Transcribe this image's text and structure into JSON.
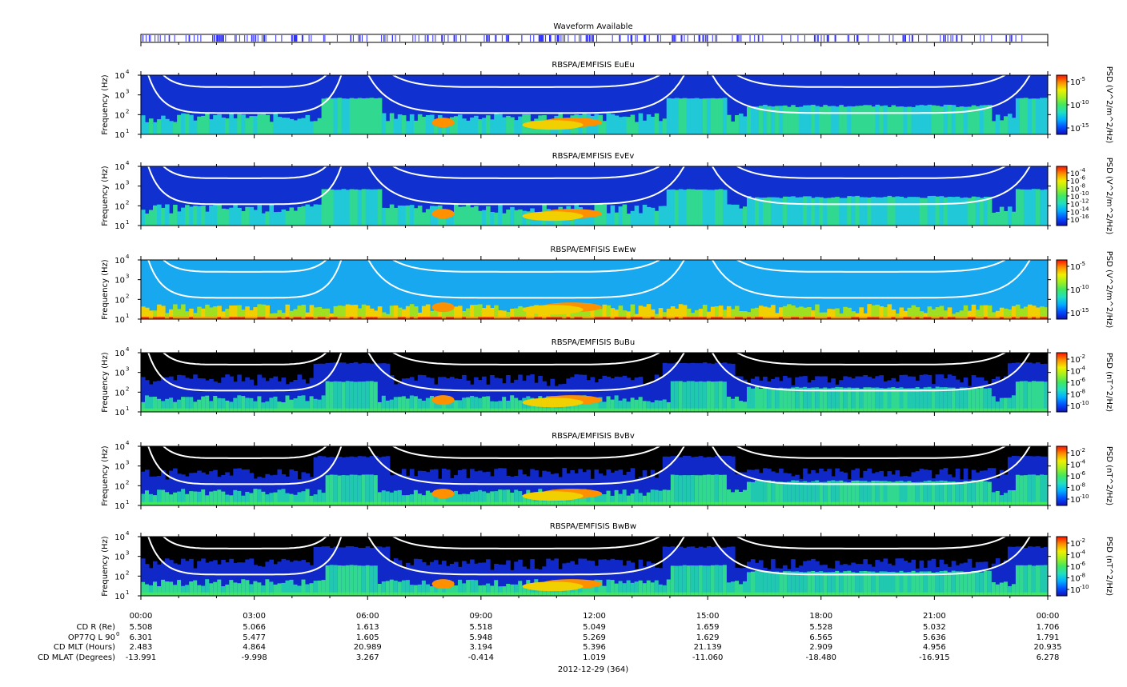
{
  "waveform": {
    "title": "Waveform Available"
  },
  "colors": {
    "colormap": [
      "#1010c0",
      "#0050ff",
      "#00b0ff",
      "#20e0c0",
      "#40e860",
      "#a0f020",
      "#f0f000",
      "#ff9000",
      "#ff1000"
    ],
    "background_black": "#000000",
    "waveform_marks": "#3030ff",
    "overlay_lines": "#ffffff"
  },
  "time_axis": {
    "date_label": "2012-12-29 (364)",
    "tick_labels": [
      "00:00",
      "03:00",
      "06:00",
      "09:00",
      "12:00",
      "15:00",
      "18:00",
      "21:00",
      "00:00"
    ],
    "ephemeris": [
      {
        "label": "CD R (Re)",
        "values": [
          "5.508",
          "5.066",
          "1.613",
          "5.518",
          "5.049",
          "1.659",
          "5.528",
          "5.032",
          "1.706"
        ]
      },
      {
        "label": "OP77Q L 90",
        "sup": "0",
        "values": [
          "6.301",
          "5.477",
          "1.605",
          "5.948",
          "5.269",
          "1.629",
          "6.565",
          "5.636",
          "1.791"
        ]
      },
      {
        "label": "CD MLT (Hours)",
        "values": [
          "2.483",
          "4.864",
          "20.989",
          "3.194",
          "5.396",
          "21.139",
          "2.909",
          "4.956",
          "20.935"
        ]
      },
      {
        "label": "CD MLAT (Degrees)",
        "values": [
          "-13.991",
          "-9.998",
          "3.267",
          "-0.414",
          "1.019",
          "-11.060",
          "-18.480",
          "-16.915",
          "6.278"
        ]
      }
    ]
  },
  "chart_data": [
    {
      "type": "heatmap",
      "title": "RBSPA/EMFISIS  EuEu",
      "ylabel": "Frequency (Hz)",
      "yscale": "log",
      "ylim": [
        10,
        10000
      ],
      "yticks": [
        "10",
        "10",
        "10",
        "10"
      ],
      "ytick_exp": [
        "1",
        "2",
        "3",
        "4"
      ],
      "colorbar_label": "PSD (V^2/m^2/Hz)",
      "colorbar_ticks": [
        "10",
        "10",
        "10"
      ],
      "colorbar_exp": [
        "-5",
        "-10",
        "-15"
      ],
      "background": "blue"
    },
    {
      "type": "heatmap",
      "title": "RBSPA/EMFISIS  EvEv",
      "ylabel": "Frequency (Hz)",
      "yscale": "log",
      "ylim": [
        10,
        10000
      ],
      "yticks": [
        "10",
        "10",
        "10",
        "10"
      ],
      "ytick_exp": [
        "1",
        "2",
        "3",
        "4"
      ],
      "colorbar_label": "PSD (V^2/m^2/Hz)",
      "colorbar_ticks": [
        "10",
        "10",
        "10",
        "10",
        "10",
        "10",
        "10"
      ],
      "colorbar_exp": [
        "-4",
        "-6",
        "-8",
        "-10",
        "-12",
        "-14",
        "-16"
      ],
      "background": "blue"
    },
    {
      "type": "heatmap",
      "title": "RBSPA/EMFISIS  EwEw",
      "ylabel": "Frequency (Hz)",
      "yscale": "log",
      "ylim": [
        10,
        10000
      ],
      "yticks": [
        "10",
        "10",
        "10",
        "10"
      ],
      "ytick_exp": [
        "1",
        "2",
        "3",
        "4"
      ],
      "colorbar_label": "PSD (V^2/m^2/Hz)",
      "colorbar_ticks": [
        "10",
        "10",
        "10"
      ],
      "colorbar_exp": [
        "-5",
        "-10",
        "-15"
      ],
      "background": "cyan"
    },
    {
      "type": "heatmap",
      "title": "RBSPA/EMFISIS  BuBu",
      "ylabel": "Frequency (Hz)",
      "yscale": "log",
      "ylim": [
        10,
        10000
      ],
      "yticks": [
        "10",
        "10",
        "10",
        "10"
      ],
      "ytick_exp": [
        "1",
        "2",
        "3",
        "4"
      ],
      "colorbar_label": "PSD (nT^2/Hz)",
      "colorbar_ticks": [
        "10",
        "10",
        "10",
        "10",
        "10"
      ],
      "colorbar_exp": [
        "-2",
        "-4",
        "-6",
        "-8",
        "-10"
      ],
      "background": "black"
    },
    {
      "type": "heatmap",
      "title": "RBSPA/EMFISIS  BvBv",
      "ylabel": "Frequency (Hz)",
      "yscale": "log",
      "ylim": [
        10,
        10000
      ],
      "yticks": [
        "10",
        "10",
        "10",
        "10"
      ],
      "ytick_exp": [
        "1",
        "2",
        "3",
        "4"
      ],
      "colorbar_label": "PSD (nT^2/Hz)",
      "colorbar_ticks": [
        "10",
        "10",
        "10",
        "10",
        "10"
      ],
      "colorbar_exp": [
        "-2",
        "-4",
        "-6",
        "-8",
        "-10"
      ],
      "background": "black"
    },
    {
      "type": "heatmap",
      "title": "RBSPA/EMFISIS  BwBw",
      "ylabel": "Frequency (Hz)",
      "yscale": "log",
      "ylim": [
        10,
        10000
      ],
      "yticks": [
        "10",
        "10",
        "10",
        "10"
      ],
      "ytick_exp": [
        "1",
        "2",
        "3",
        "4"
      ],
      "colorbar_label": "PSD (nT^2/Hz)",
      "colorbar_ticks": [
        "10",
        "10",
        "10",
        "10",
        "10"
      ],
      "colorbar_exp": [
        "-2",
        "-4",
        "-6",
        "-8",
        "-10"
      ],
      "background": "black"
    }
  ]
}
